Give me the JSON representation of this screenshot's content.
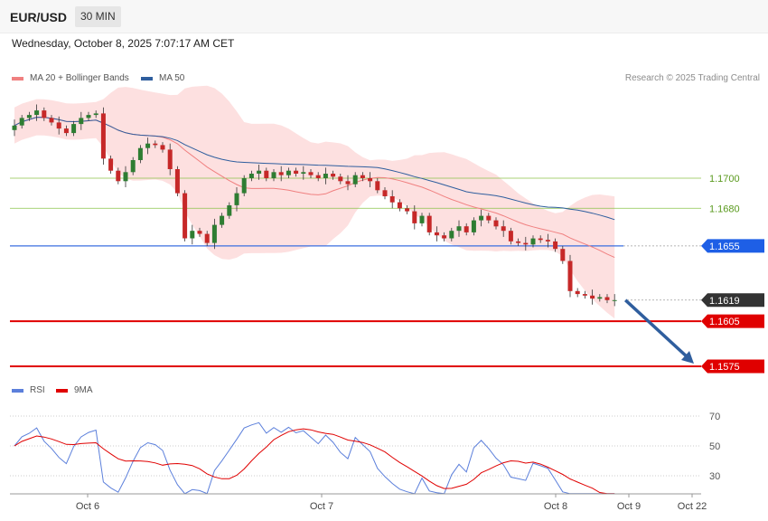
{
  "header": {
    "symbol": "EUR/USD",
    "timeframe": "30 MIN"
  },
  "datetime": "Wednesday, October 8, 2025 7:07:17 AM CET",
  "legend_main": [
    {
      "label": "MA 20 + Bollinger Bands",
      "color": "#f08080"
    },
    {
      "label": "MA 50",
      "color": "#2f5e9e"
    }
  ],
  "legend_rsi": [
    {
      "label": "RSI",
      "color": "#5b7fdb"
    },
    {
      "label": "9MA",
      "color": "#e00000"
    }
  ],
  "credit": "Research © 2025 Trading Central",
  "colors": {
    "up": "#2e7d32",
    "down": "#c62828",
    "bb_fill": "#fde0e0",
    "ma20": "#f08080",
    "ma50": "#2f5e9e",
    "rsi": "#5b7fdb",
    "rsi_ma": "#e00000"
  },
  "chart_data": {
    "type": "candlestick",
    "x_labels": [
      "Oct 6",
      "Oct 7",
      "Oct 8",
      "Oct 9",
      "Oct 22"
    ],
    "price_levels": [
      {
        "value": 1.17,
        "label": "1.1700",
        "style": "green-thin"
      },
      {
        "value": 1.168,
        "label": "1.1680",
        "style": "green-thin"
      },
      {
        "value": 1.1655,
        "label": "1.1655",
        "style": "blue"
      },
      {
        "value": 1.1619,
        "label": "1.1619",
        "style": "current"
      },
      {
        "value": 1.1605,
        "label": "1.1605",
        "style": "red"
      },
      {
        "value": 1.1575,
        "label": "1.1575",
        "style": "red"
      }
    ],
    "forecast_arrow": {
      "from": 1.1619,
      "to": 1.1575
    },
    "rsi_ticks": [
      70,
      50,
      30
    ],
    "close": [
      1.1735,
      1.174,
      1.1742,
      1.1745,
      1.174,
      1.1737,
      1.1733,
      1.173,
      1.1736,
      1.174,
      1.1742,
      1.1743,
      1.1713,
      1.1705,
      1.1698,
      1.1704,
      1.1712,
      1.172,
      1.1723,
      1.1722,
      1.1719,
      1.1706,
      1.169,
      1.166,
      1.1665,
      1.1663,
      1.1657,
      1.1669,
      1.1675,
      1.1682,
      1.169,
      1.17,
      1.1703,
      1.1705,
      1.17,
      1.1704,
      1.1702,
      1.1705,
      1.1703,
      1.1704,
      1.1702,
      1.17,
      1.1703,
      1.1701,
      1.1698,
      1.1696,
      1.1702,
      1.17,
      1.1698,
      1.1692,
      1.1688,
      1.1684,
      1.168,
      1.1678,
      1.167,
      1.1675,
      1.1664,
      1.1662,
      1.166,
      1.1665,
      1.1668,
      1.1664,
      1.1672,
      1.1675,
      1.1672,
      1.1668,
      1.1665,
      1.1658,
      1.1657,
      1.1656,
      1.166,
      1.1659,
      1.1658,
      1.1653,
      1.1645,
      1.1625,
      1.1623,
      1.1622,
      1.162,
      1.1621,
      1.1619,
      1.1619
    ]
  }
}
